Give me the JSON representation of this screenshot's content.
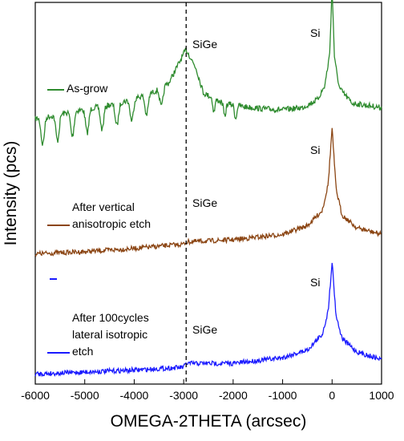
{
  "chart_data": {
    "type": "line",
    "xlabel": "OMEGA-2THETA (arcsec)",
    "ylabel": "Intensity (pcs)",
    "xlim": [
      -6000,
      1000
    ],
    "x_ticks": [
      -6000,
      -5000,
      -4000,
      -3000,
      -2000,
      -1000,
      0,
      1000
    ],
    "x_tick_labels": [
      "-6000",
      "-5000",
      "-4000",
      "-3000",
      "-2000",
      "-1000",
      "0",
      "1000"
    ],
    "y_ticks": "unlabeled",
    "grid": false,
    "reference_line": {
      "x": -2950,
      "style": "dashed"
    },
    "series": [
      {
        "name": "As-grow",
        "color": "#2e8b2e",
        "peaks": [
          {
            "label": "SiGe",
            "x": -2950
          },
          {
            "label": "Si",
            "x": 0
          }
        ],
        "values": [
          {
            "x": -6000,
            "y": 0.35
          },
          {
            "x": -5600,
            "y": 0.5
          },
          {
            "x": -5200,
            "y": 0.7
          },
          {
            "x": -4800,
            "y": 0.85
          },
          {
            "x": -4400,
            "y": 1.0
          },
          {
            "x": -4000,
            "y": 1.25
          },
          {
            "x": -3600,
            "y": 1.55
          },
          {
            "x": -3300,
            "y": 1.95
          },
          {
            "x": -3150,
            "y": 2.6
          },
          {
            "x": -2950,
            "y": 3.45
          },
          {
            "x": -2750,
            "y": 2.6
          },
          {
            "x": -2600,
            "y": 1.5
          },
          {
            "x": -2200,
            "y": 1.05
          },
          {
            "x": -1800,
            "y": 0.9
          },
          {
            "x": -1400,
            "y": 0.8
          },
          {
            "x": -1000,
            "y": 0.75
          },
          {
            "x": -600,
            "y": 0.85
          },
          {
            "x": -300,
            "y": 1.2
          },
          {
            "x": -150,
            "y": 1.8
          },
          {
            "x": -50,
            "y": 3.2
          },
          {
            "x": 0,
            "y": 6.2
          },
          {
            "x": 50,
            "y": 3.0
          },
          {
            "x": 150,
            "y": 1.7
          },
          {
            "x": 400,
            "y": 1.05
          },
          {
            "x": 700,
            "y": 0.95
          },
          {
            "x": 1000,
            "y": 0.85
          }
        ]
      },
      {
        "name": "After vertical anisotropic etch",
        "color": "#8b4513",
        "peaks": [
          {
            "label": "SiGe",
            "x": -2950
          },
          {
            "label": "Si",
            "x": 0
          }
        ],
        "values": [
          {
            "x": -6000,
            "y": 0.2
          },
          {
            "x": -5000,
            "y": 0.3
          },
          {
            "x": -4000,
            "y": 0.45
          },
          {
            "x": -3000,
            "y": 0.65
          },
          {
            "x": -2950,
            "y": 0.75
          },
          {
            "x": -2000,
            "y": 0.85
          },
          {
            "x": -1000,
            "y": 1.1
          },
          {
            "x": -500,
            "y": 1.5
          },
          {
            "x": -200,
            "y": 2.2
          },
          {
            "x": -80,
            "y": 3.4
          },
          {
            "x": 0,
            "y": 6.0
          },
          {
            "x": 80,
            "y": 3.2
          },
          {
            "x": 200,
            "y": 2.0
          },
          {
            "x": 500,
            "y": 1.4
          },
          {
            "x": 1000,
            "y": 1.1
          }
        ]
      },
      {
        "name": "After 100cycles lateral isotropic etch",
        "color": "#1a1aff",
        "peaks": [
          {
            "label": "SiGe",
            "x": -2950
          },
          {
            "label": "Si",
            "x": 0
          }
        ],
        "values": [
          {
            "x": -6000,
            "y": 0.15
          },
          {
            "x": -5000,
            "y": 0.25
          },
          {
            "x": -4000,
            "y": 0.35
          },
          {
            "x": -3000,
            "y": 0.5
          },
          {
            "x": -2950,
            "y": 0.7
          },
          {
            "x": -2000,
            "y": 0.7
          },
          {
            "x": -1000,
            "y": 1.0
          },
          {
            "x": -500,
            "y": 1.4
          },
          {
            "x": -200,
            "y": 2.2
          },
          {
            "x": -80,
            "y": 3.4
          },
          {
            "x": 0,
            "y": 6.0
          },
          {
            "x": 80,
            "y": 3.2
          },
          {
            "x": 200,
            "y": 2.0
          },
          {
            "x": 500,
            "y": 1.3
          },
          {
            "x": 1000,
            "y": 0.9
          }
        ]
      }
    ],
    "annotations": {
      "sige": "SiGe",
      "si": "Si",
      "label_as_grow": "As-grow",
      "label_vertical_1": "After vertical",
      "label_vertical_2": "anisotropic etch",
      "label_lateral_1": "After 100cycles",
      "label_lateral_2": "lateral isotropic",
      "label_lateral_3": "etch"
    }
  }
}
